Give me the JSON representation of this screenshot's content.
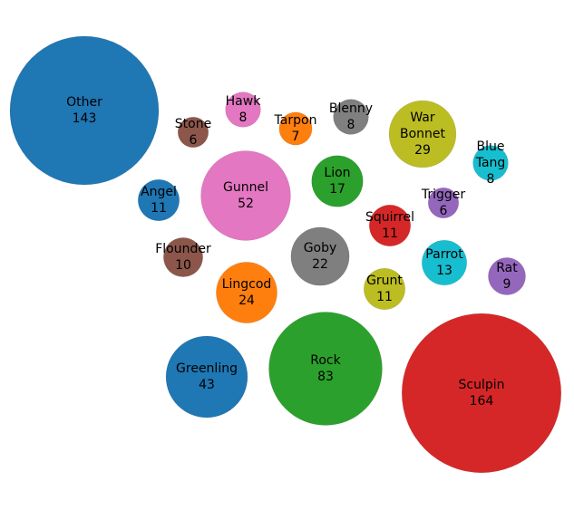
{
  "chart_data": {
    "type": "bubble",
    "title": "",
    "bubbles": [
      {
        "label_lines": [
          "Other"
        ],
        "value": 143,
        "color": "#1f77b4"
      },
      {
        "label_lines": [
          "Sculpin"
        ],
        "value": 164,
        "color": "#d62728"
      },
      {
        "label_lines": [
          "Rock"
        ],
        "value": 83,
        "color": "#2ca02c"
      },
      {
        "label_lines": [
          "Gunnel"
        ],
        "value": 52,
        "color": "#e377c2"
      },
      {
        "label_lines": [
          "Greenling"
        ],
        "value": 43,
        "color": "#1f77b4"
      },
      {
        "label_lines": [
          "War",
          "Bonnet"
        ],
        "value": 29,
        "color": "#bcbd22"
      },
      {
        "label_lines": [
          "Lingcod"
        ],
        "value": 24,
        "color": "#ff7f0e"
      },
      {
        "label_lines": [
          "Goby"
        ],
        "value": 22,
        "color": "#7f7f7f"
      },
      {
        "label_lines": [
          "Lion"
        ],
        "value": 17,
        "color": "#2ca02c"
      },
      {
        "label_lines": [
          "Parrot"
        ],
        "value": 13,
        "color": "#17becf"
      },
      {
        "label_lines": [
          "Angel"
        ],
        "value": 11,
        "color": "#1f77b4"
      },
      {
        "label_lines": [
          "Squirrel"
        ],
        "value": 11,
        "color": "#d62728"
      },
      {
        "label_lines": [
          "Grunt"
        ],
        "value": 11,
        "color": "#bcbd22"
      },
      {
        "label_lines": [
          "Flounder"
        ],
        "value": 10,
        "color": "#8c564b"
      },
      {
        "label_lines": [
          "Rat"
        ],
        "value": 9,
        "color": "#9467bd"
      },
      {
        "label_lines": [
          "Hawk"
        ],
        "value": 8,
        "color": "#e377c2"
      },
      {
        "label_lines": [
          "Blenny"
        ],
        "value": 8,
        "color": "#7f7f7f"
      },
      {
        "label_lines": [
          "Blue",
          "Tang"
        ],
        "value": 8,
        "color": "#17becf"
      },
      {
        "label_lines": [
          "Tarpon"
        ],
        "value": 7,
        "color": "#ff7f0e"
      },
      {
        "label_lines": [
          "Stone"
        ],
        "value": 6,
        "color": "#8c564b"
      },
      {
        "label_lines": [
          "Trigger"
        ],
        "value": 6,
        "color": "#9467bd"
      }
    ]
  }
}
